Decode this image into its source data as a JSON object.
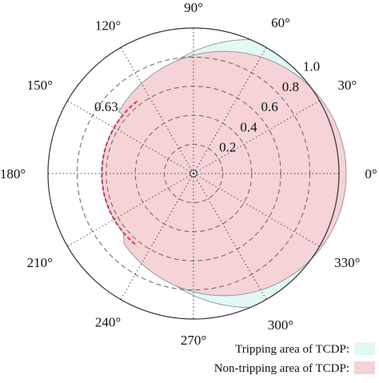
{
  "chart_data": {
    "type": "polar",
    "angle_ticks": [
      {
        "deg": 0,
        "label": "0°"
      },
      {
        "deg": 30,
        "label": "30°"
      },
      {
        "deg": 60,
        "label": "60°"
      },
      {
        "deg": 90,
        "label": "90°"
      },
      {
        "deg": 120,
        "label": "120°"
      },
      {
        "deg": 150,
        "label": "150°"
      },
      {
        "deg": 180,
        "label": "180°"
      },
      {
        "deg": 210,
        "label": "210°"
      },
      {
        "deg": 240,
        "label": "240°"
      },
      {
        "deg": 270,
        "label": "270°"
      },
      {
        "deg": 300,
        "label": "300°"
      },
      {
        "deg": 330,
        "label": "330°"
      }
    ],
    "radial_ticks": [
      {
        "value": 0.2,
        "label": "0.2"
      },
      {
        "value": 0.4,
        "label": "0.4"
      },
      {
        "value": 0.6,
        "label": "0.6"
      },
      {
        "value": 0.8,
        "label": "0.8"
      },
      {
        "value": 1.0,
        "label": "1.0"
      }
    ],
    "rlim": [
      0,
      1.0
    ],
    "threshold": {
      "value": 0.63,
      "label": "0.63",
      "color": "#e0304a"
    },
    "regions": [
      {
        "name": "Tripping area of TCDP:",
        "color": "#e2f8f5"
      },
      {
        "name": "Non-tripping  area of TCDP:",
        "color": "#f5d3d6"
      }
    ],
    "region_boundary": {
      "outer_circle_center": [
        0.38,
        0
      ],
      "outer_circle_radius": 0.92,
      "inner_circle_center": [
        0.21,
        0
      ],
      "inner_circle_radius": 0.84
    },
    "grid": true
  },
  "legend": {
    "items": [
      {
        "label": "Tripping area of TCDP:",
        "color": "#e2f8f5"
      },
      {
        "label": "Non-tripping  area of TCDP:",
        "color": "#f5d3d6"
      }
    ]
  }
}
